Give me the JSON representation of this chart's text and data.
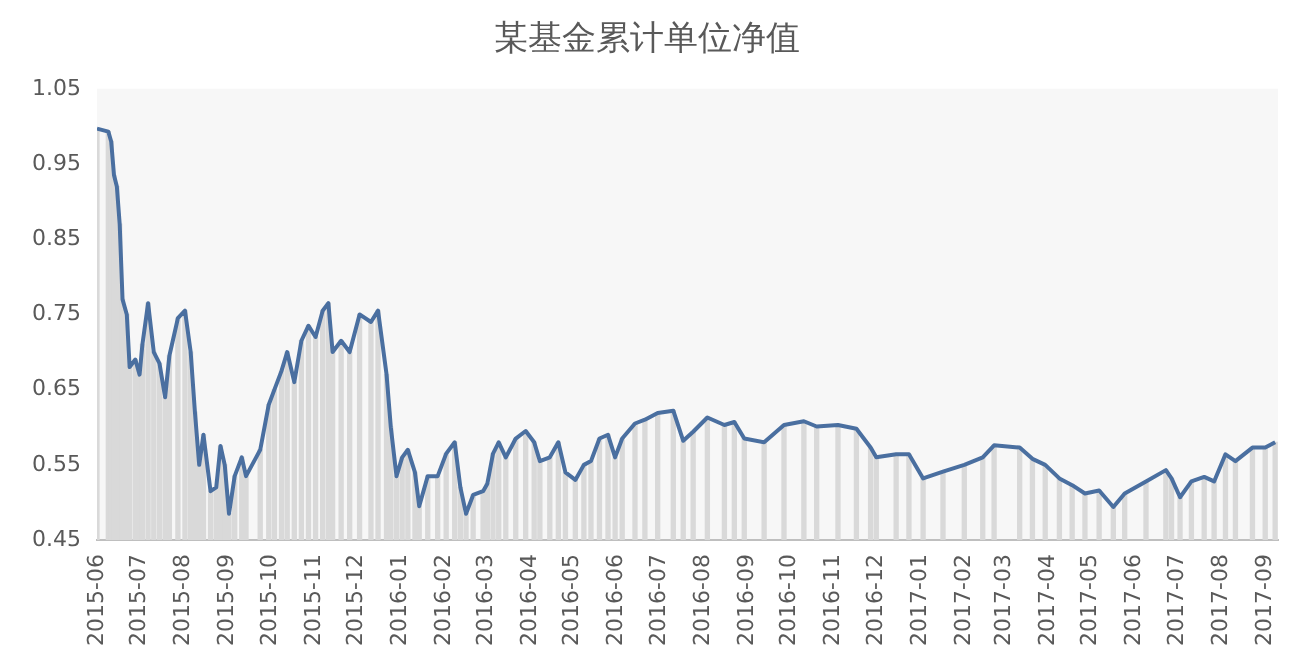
{
  "chart_data": {
    "type": "line",
    "title": "某基金累计单位净值",
    "x": [
      "2015-06-01",
      "2015-06-09",
      "2015-06-11",
      "2015-06-13",
      "2015-06-15",
      "2015-06-17",
      "2015-06-19",
      "2015-06-22",
      "2015-06-24",
      "2015-06-28",
      "2015-07-01",
      "2015-07-03",
      "2015-07-07",
      "2015-07-11",
      "2015-07-15",
      "2015-07-19",
      "2015-07-22",
      "2015-07-28",
      "2015-08-02",
      "2015-08-06",
      "2015-08-09",
      "2015-08-12",
      "2015-08-15",
      "2015-08-20",
      "2015-08-24",
      "2015-08-27",
      "2015-08-30",
      "2015-09-02",
      "2015-09-06",
      "2015-09-11",
      "2015-09-14",
      "2015-09-24",
      "2015-09-30",
      "2015-10-04",
      "2015-10-09",
      "2015-10-13",
      "2015-10-18",
      "2015-10-23",
      "2015-10-28",
      "2015-11-02",
      "2015-11-07",
      "2015-11-11",
      "2015-11-14",
      "2015-11-20",
      "2015-11-26",
      "2015-12-03",
      "2015-12-11",
      "2015-12-16",
      "2015-12-22",
      "2015-12-25",
      "2015-12-29",
      "2016-01-02",
      "2016-01-06",
      "2016-01-11",
      "2016-01-14",
      "2016-01-20",
      "2016-01-27",
      "2016-02-02",
      "2016-02-08",
      "2016-02-12",
      "2016-02-16",
      "2016-02-21",
      "2016-02-28",
      "2016-03-02",
      "2016-03-06",
      "2016-03-10",
      "2016-03-15",
      "2016-03-22",
      "2016-03-29",
      "2016-04-04",
      "2016-04-08",
      "2016-04-15",
      "2016-04-21",
      "2016-04-26",
      "2016-05-03",
      "2016-05-09",
      "2016-05-14",
      "2016-05-20",
      "2016-05-26",
      "2016-05-31",
      "2016-06-05",
      "2016-06-14",
      "2016-06-21",
      "2016-06-30",
      "2016-07-11",
      "2016-07-18",
      "2016-07-25",
      "2016-08-04",
      "2016-08-16",
      "2016-08-23",
      "2016-08-30",
      "2016-09-13",
      "2016-09-27",
      "2016-10-11",
      "2016-10-20",
      "2016-11-04",
      "2016-11-17",
      "2016-11-27",
      "2016-12-01",
      "2016-12-15",
      "2016-12-24",
      "2017-01-03",
      "2017-01-17",
      "2017-02-01",
      "2017-02-14",
      "2017-02-22",
      "2017-03-12",
      "2017-03-21",
      "2017-03-30",
      "2017-04-09",
      "2017-04-18",
      "2017-04-27",
      "2017-05-07",
      "2017-05-17",
      "2017-05-25",
      "2017-06-09",
      "2017-06-23",
      "2017-06-27",
      "2017-07-03",
      "2017-07-11",
      "2017-07-20",
      "2017-07-27",
      "2017-08-04",
      "2017-08-11",
      "2017-08-23",
      "2017-09-01",
      "2017-09-08"
    ],
    "series": [
      {
        "type": "bar",
        "color": "#d9d9d9",
        "values": [
          0.997,
          0.993,
          0.98,
          0.935,
          0.92,
          0.87,
          0.77,
          0.75,
          0.68,
          0.69,
          0.67,
          0.71,
          0.765,
          0.7,
          0.685,
          0.64,
          0.695,
          0.745,
          0.755,
          0.7,
          0.62,
          0.55,
          0.59,
          0.515,
          0.52,
          0.575,
          0.55,
          0.485,
          0.535,
          0.56,
          0.535,
          0.57,
          0.63,
          0.65,
          0.675,
          0.7,
          0.66,
          0.715,
          0.735,
          0.72,
          0.755,
          0.765,
          0.7,
          0.715,
          0.7,
          0.75,
          0.74,
          0.755,
          0.67,
          0.6,
          0.535,
          0.56,
          0.57,
          0.54,
          0.495,
          0.535,
          0.535,
          0.565,
          0.58,
          0.52,
          0.485,
          0.51,
          0.515,
          0.525,
          0.565,
          0.58,
          0.56,
          0.585,
          0.595,
          0.58,
          0.555,
          0.56,
          0.58,
          0.54,
          0.53,
          0.55,
          0.555,
          0.585,
          0.59,
          0.56,
          0.585,
          0.605,
          0.61,
          0.619,
          0.622,
          0.582,
          0.594,
          0.613,
          0.603,
          0.607,
          0.585,
          0.58,
          0.603,
          0.608,
          0.601,
          0.603,
          0.598,
          0.573,
          0.56,
          0.564,
          0.564,
          0.532,
          0.541,
          0.55,
          0.56,
          0.576,
          0.573,
          0.558,
          0.55,
          0.532,
          0.523,
          0.512,
          0.516,
          0.494,
          0.512,
          0.528,
          0.543,
          0.532,
          0.507,
          0.528,
          0.534,
          0.528,
          0.564,
          0.555,
          0.573,
          0.573,
          0.58
        ]
      },
      {
        "color": "#4a6fa0",
        "values": [
          0.997,
          0.993,
          0.98,
          0.935,
          0.92,
          0.87,
          0.77,
          0.75,
          0.68,
          0.69,
          0.67,
          0.71,
          0.765,
          0.7,
          0.685,
          0.64,
          0.695,
          0.745,
          0.755,
          0.7,
          0.62,
          0.55,
          0.59,
          0.515,
          0.52,
          0.575,
          0.55,
          0.485,
          0.535,
          0.56,
          0.535,
          0.57,
          0.63,
          0.65,
          0.675,
          0.7,
          0.66,
          0.715,
          0.735,
          0.72,
          0.755,
          0.765,
          0.7,
          0.715,
          0.7,
          0.75,
          0.74,
          0.755,
          0.67,
          0.6,
          0.535,
          0.56,
          0.57,
          0.54,
          0.495,
          0.535,
          0.535,
          0.565,
          0.58,
          0.52,
          0.485,
          0.51,
          0.515,
          0.525,
          0.565,
          0.58,
          0.56,
          0.585,
          0.595,
          0.58,
          0.555,
          0.56,
          0.58,
          0.54,
          0.53,
          0.55,
          0.555,
          0.585,
          0.59,
          0.56,
          0.585,
          0.605,
          0.61,
          0.619,
          0.622,
          0.582,
          0.594,
          0.613,
          0.603,
          0.607,
          0.585,
          0.58,
          0.603,
          0.608,
          0.601,
          0.603,
          0.598,
          0.573,
          0.56,
          0.564,
          0.564,
          0.532,
          0.541,
          0.55,
          0.56,
          0.576,
          0.573,
          0.558,
          0.55,
          0.532,
          0.523,
          0.512,
          0.516,
          0.494,
          0.512,
          0.528,
          0.543,
          0.532,
          0.507,
          0.528,
          0.534,
          0.528,
          0.564,
          0.555,
          0.573,
          0.573,
          0.58
        ]
      }
    ],
    "xlim": [
      "2015-06-01",
      "2017-09-10"
    ],
    "xticks": [
      {
        "value": "2015-06-01",
        "label": "2015-06"
      },
      {
        "value": "2015-07-01",
        "label": "2015-07"
      },
      {
        "value": "2015-08-01",
        "label": "2015-08"
      },
      {
        "value": "2015-09-01",
        "label": "2015-09"
      },
      {
        "value": "2015-10-01",
        "label": "2015-10"
      },
      {
        "value": "2015-11-01",
        "label": "2015-11"
      },
      {
        "value": "2015-12-01",
        "label": "2015-12"
      },
      {
        "value": "2016-01-01",
        "label": "2016-01"
      },
      {
        "value": "2016-02-01",
        "label": "2016-02"
      },
      {
        "value": "2016-03-01",
        "label": "2016-03"
      },
      {
        "value": "2016-04-01",
        "label": "2016-04"
      },
      {
        "value": "2016-05-01",
        "label": "2016-05"
      },
      {
        "value": "2016-06-01",
        "label": "2016-06"
      },
      {
        "value": "2016-07-01",
        "label": "2016-07"
      },
      {
        "value": "2016-08-01",
        "label": "2016-08"
      },
      {
        "value": "2016-09-01",
        "label": "2016-09"
      },
      {
        "value": "2016-10-01",
        "label": "2016-10"
      },
      {
        "value": "2016-11-01",
        "label": "2016-11"
      },
      {
        "value": "2016-12-01",
        "label": "2016-12"
      },
      {
        "value": "2017-01-01",
        "label": "2017-01"
      },
      {
        "value": "2017-02-01",
        "label": "2017-02"
      },
      {
        "value": "2017-03-01",
        "label": "2017-03"
      },
      {
        "value": "2017-04-01",
        "label": "2017-04"
      },
      {
        "value": "2017-05-01",
        "label": "2017-05"
      },
      {
        "value": "2017-06-01",
        "label": "2017-06"
      },
      {
        "value": "2017-07-01",
        "label": "2017-07"
      },
      {
        "value": "2017-08-01",
        "label": "2017-08"
      },
      {
        "value": "2017-09-01",
        "label": "2017-09"
      }
    ],
    "ylim": [
      0.45,
      1.05
    ],
    "yticks": [
      0.45,
      0.55,
      0.65,
      0.75,
      0.85,
      0.95,
      1.05
    ],
    "grid": false,
    "legend": false,
    "marker": "none",
    "line_style": "solid"
  }
}
